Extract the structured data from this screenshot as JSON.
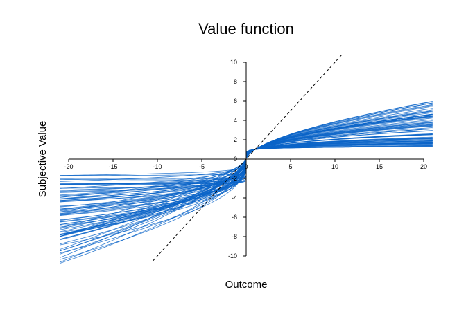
{
  "chart_data": {
    "type": "line",
    "title": "Value function",
    "xlabel": "Outcome",
    "ylabel": "Subjective Value",
    "xlim": [
      -21,
      21
    ],
    "ylim": [
      -10.8,
      10.8
    ],
    "x_ticks": [
      -20,
      -15,
      -10,
      -5,
      0,
      5,
      10,
      15,
      20
    ],
    "x_tick_labels": [
      "-20",
      "-15",
      "-10",
      "-5",
      "0",
      "5",
      "10",
      "15",
      "20"
    ],
    "y_ticks": [
      -10,
      -8,
      -6,
      -4,
      -2,
      0,
      2,
      4,
      6,
      8,
      10
    ],
    "y_tick_labels": [
      "-10",
      "-8",
      "-6",
      "-4",
      "-2",
      "0",
      "2",
      "4",
      "6",
      "8",
      "10"
    ],
    "axes_cross_at_origin": true,
    "series_color": "#0a64c8",
    "reference_line": {
      "name": "identity",
      "style": "dashed",
      "color": "#000000",
      "x": [
        -10.5,
        10.8
      ],
      "y": [
        -10.5,
        10.8
      ]
    },
    "description_of_series": "80 simulated subject curves v(x)=x^alpha for gains, -lambda*(-x)^beta for losses",
    "series_parameters": {
      "gain_value_at_21_approx_range": [
        1.3,
        6.0
      ],
      "loss_value_at_minus_21_approx_range": [
        -1.4,
        -10.8
      ],
      "count": 80
    }
  }
}
